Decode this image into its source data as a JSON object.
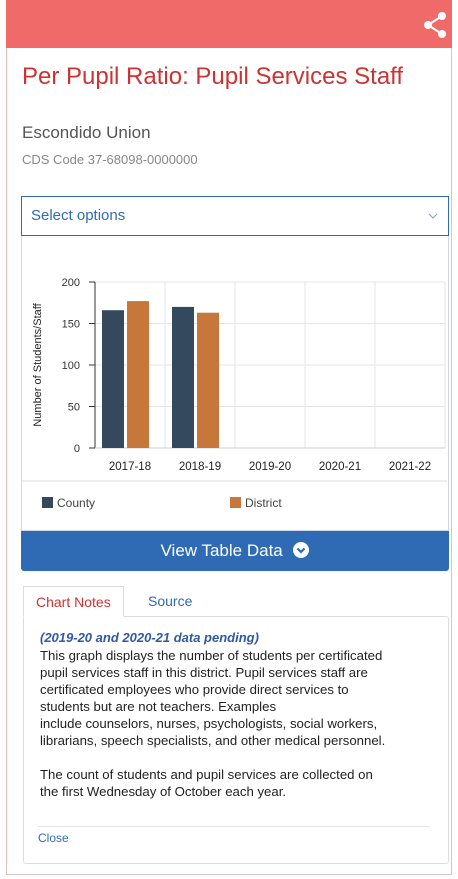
{
  "header": {
    "title": "Per Pupil Ratio: Pupil Services Staff",
    "district": "Escondido Union",
    "cds_code": "CDS Code 37-68098-0000000"
  },
  "select": {
    "label": "Select options"
  },
  "chart_data": {
    "type": "bar",
    "ylabel": "Number of Students/Staff",
    "categories": [
      "2017-18",
      "2018-19",
      "2019-20",
      "2020-21",
      "2021-22"
    ],
    "series": [
      {
        "name": "County",
        "color": "#34495e",
        "values": [
          166,
          170,
          null,
          null,
          null
        ]
      },
      {
        "name": "District",
        "color": "#c8773a",
        "values": [
          177,
          163,
          null,
          null,
          null
        ]
      }
    ],
    "ylim": [
      0,
      200
    ],
    "yticks": [
      0,
      50,
      100,
      150,
      200
    ],
    "grid": true
  },
  "button": {
    "label": "View Table Data"
  },
  "tabs": [
    "Chart Notes",
    "Source"
  ],
  "notes": {
    "pending": "(2019-20 and 2020-21 data pending)",
    "paragraphs": [
      [
        "This graph displays the number of students per certificated",
        "pupil services staff in this district. Pupil services staff are",
        "certificated employees who provide direct services to",
        "students but are not teachers. Examples",
        "include counselors, nurses, psychologists, social workers,",
        "librarians, speech specialists, and other medical personnel."
      ],
      [
        "The count of students and pupil services are collected on",
        "the first Wednesday of October each year."
      ]
    ],
    "close": "Close"
  }
}
